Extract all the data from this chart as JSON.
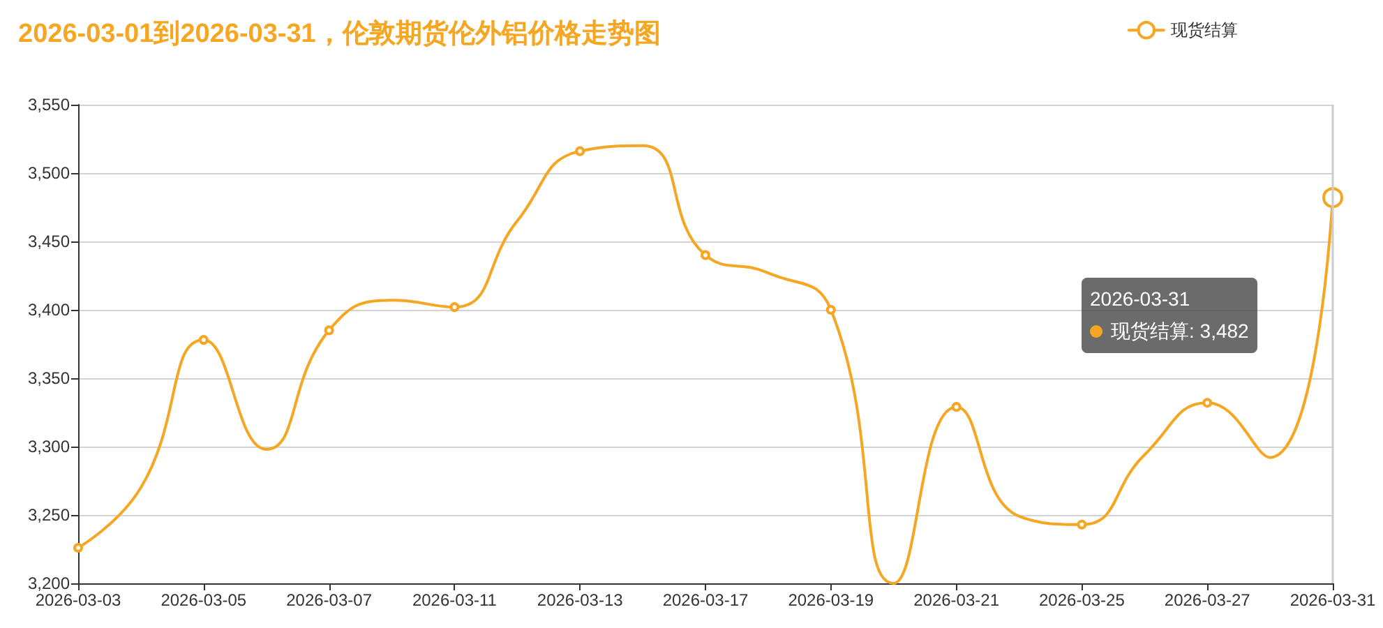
{
  "chart_data": {
    "type": "line",
    "title": "2026-03-01到2026-03-31，伦敦期货伦外铝价格走势图",
    "categories": [
      "2026-03-03",
      null,
      "2026-03-05",
      null,
      "2026-03-07",
      null,
      "2026-03-11",
      null,
      "2026-03-13",
      null,
      "2026-03-17",
      null,
      "2026-03-19",
      null,
      "2026-03-21",
      null,
      "2026-03-25",
      null,
      "2026-03-27",
      null,
      "2026-03-31"
    ],
    "series": [
      {
        "name": "现货结算",
        "color": "#f5a623",
        "values": [
          3226,
          3270,
          3378,
          3298,
          3385,
          3407,
          3402,
          3465,
          3516,
          3520,
          3440,
          3427,
          3400,
          3200,
          3329,
          3249,
          3243,
          3294,
          3332,
          3292,
          3482
        ]
      }
    ],
    "ylim": [
      3200,
      3550
    ],
    "yticks": [
      {
        "value": 3200,
        "label": "3,200"
      },
      {
        "value": 3250,
        "label": "3,250"
      },
      {
        "value": 3300,
        "label": "3,300"
      },
      {
        "value": 3350,
        "label": "3,350"
      },
      {
        "value": 3400,
        "label": "3,400"
      },
      {
        "value": 3450,
        "label": "3,450"
      },
      {
        "value": 3500,
        "label": "3,500"
      },
      {
        "value": 3550,
        "label": "3,550"
      }
    ],
    "grid": "y",
    "legend": "top right",
    "marker": "circle",
    "line_style": "solid",
    "ref_lines": [
      {
        "axis": "x",
        "value": "2026-03-31",
        "color": "#cccccc"
      }
    ],
    "annotations": [
      "2026-03-31\n现货结算: 3,482"
    ]
  }
}
